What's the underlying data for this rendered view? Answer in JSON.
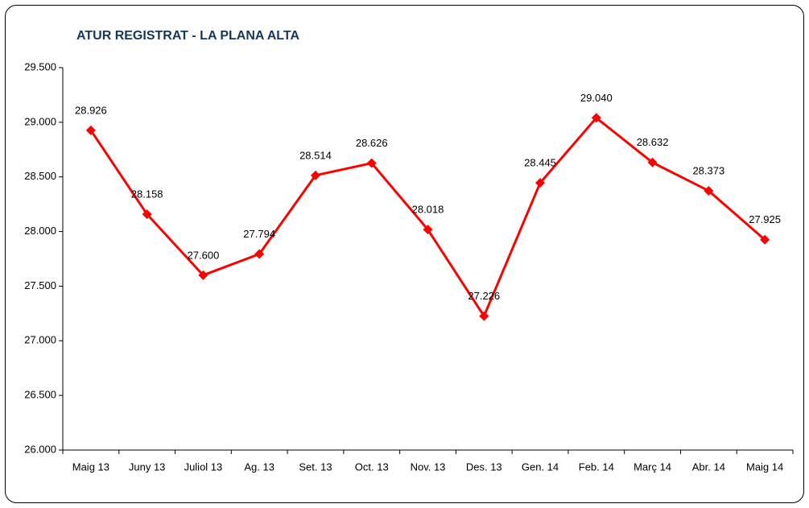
{
  "chart_data": {
    "type": "line",
    "title": "ATUR REGISTRAT - LA PLANA ALTA",
    "categories": [
      "Maig 13",
      "Juny 13",
      "Juliol 13",
      "Ag. 13",
      "Set. 13",
      "Oct. 13",
      "Nov. 13",
      "Des. 13",
      "Gen. 14",
      "Feb. 14",
      "Març 14",
      "Abr. 14",
      "Maig 14"
    ],
    "series": [
      {
        "color": "#ff0000",
        "values": [
          28926,
          28158,
          27600,
          27794,
          28514,
          28626,
          28018,
          27226,
          28445,
          29040,
          28632,
          28373,
          27925
        ],
        "value_labels": [
          "28.926",
          "28.158",
          "27.600",
          "27.794",
          "28.514",
          "28.626",
          "28.018",
          "27.226",
          "28.445",
          "29.040",
          "28.632",
          "28.373",
          "27.925"
        ]
      }
    ],
    "ylim": [
      26000,
      29500
    ],
    "yticks": [
      {
        "value": 26000,
        "label": "26.000"
      },
      {
        "value": 26500,
        "label": "26.500"
      },
      {
        "value": 27000,
        "label": "27.000"
      },
      {
        "value": 27500,
        "label": "27.500"
      },
      {
        "value": 28000,
        "label": "28.000"
      },
      {
        "value": 28500,
        "label": "28.500"
      },
      {
        "value": 29000,
        "label": "29.000"
      },
      {
        "value": 29500,
        "label": "29.500"
      }
    ],
    "grid": false
  }
}
